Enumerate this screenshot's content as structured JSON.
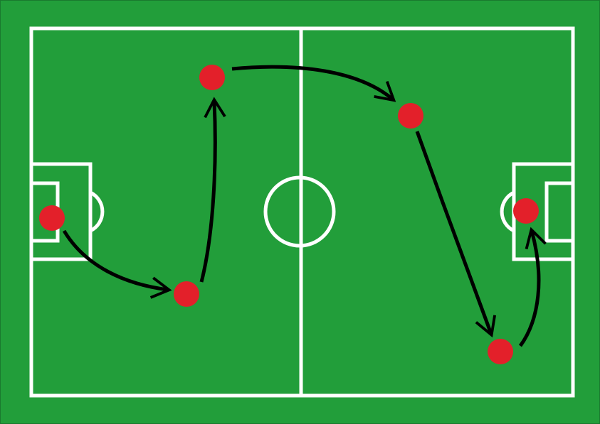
{
  "diagram": {
    "type": "football-pitch-passing-play",
    "colors": {
      "grass": "#229e3a",
      "lines": "#ffffff",
      "player": "#e3202a",
      "arrow": "#000000",
      "frame": "#1a7a2e"
    },
    "players": [
      {
        "id": "p1",
        "label": ""
      },
      {
        "id": "p2",
        "label": ""
      },
      {
        "id": "p3",
        "label": ""
      },
      {
        "id": "p4",
        "label": ""
      },
      {
        "id": "p5",
        "label": ""
      },
      {
        "id": "p6",
        "label": ""
      }
    ],
    "passes": [
      {
        "from": "p1",
        "to": "p2"
      },
      {
        "from": "p2",
        "to": "p3"
      },
      {
        "from": "p3",
        "to": "p4"
      },
      {
        "from": "p4",
        "to": "p5"
      },
      {
        "from": "p5",
        "to": "p6"
      }
    ]
  }
}
